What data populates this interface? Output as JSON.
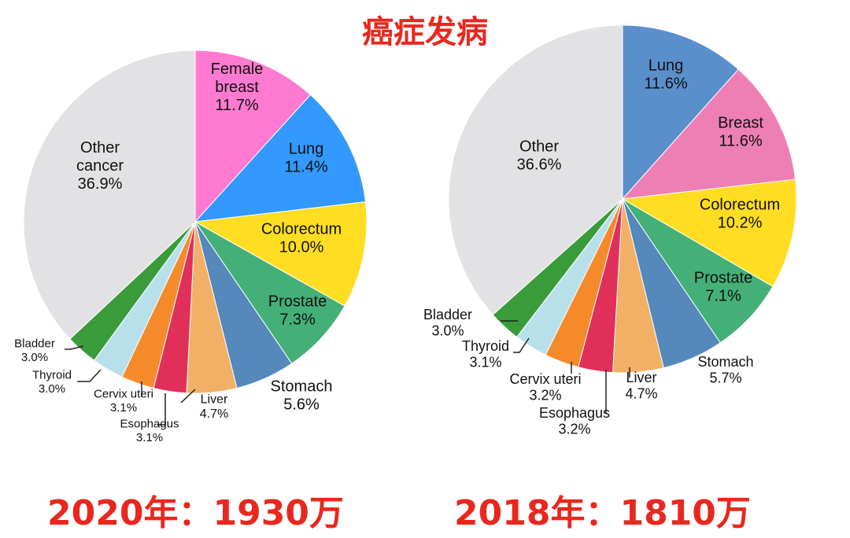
{
  "title": "癌症发病",
  "captions": {
    "left": "2020年：1930万",
    "right": "2018年：1810万"
  },
  "chart_data": [
    {
      "type": "pie",
      "caption": "2020年：1930万",
      "slices": [
        {
          "label": [
            "Female",
            "breast"
          ],
          "value": 11.7,
          "pct": "11.7%",
          "color": "#ff7ad0"
        },
        {
          "label": [
            "Lung"
          ],
          "value": 11.4,
          "pct": "11.4%",
          "color": "#3399ff"
        },
        {
          "label": [
            "Colorectum"
          ],
          "value": 10.0,
          "pct": "10.0%",
          "color": "#ffdd22"
        },
        {
          "label": [
            "Prostate"
          ],
          "value": 7.3,
          "pct": "7.3%",
          "color": "#44b077"
        },
        {
          "label": [
            "Stomach"
          ],
          "value": 5.6,
          "pct": "5.6%",
          "color": "#5588bb"
        },
        {
          "label": [
            "Liver"
          ],
          "value": 4.7,
          "pct": "4.7%",
          "color": "#f2b066"
        },
        {
          "label": [
            "Esophagus"
          ],
          "value": 3.1,
          "pct": "3.1%",
          "color": "#e0305a"
        },
        {
          "label": [
            "Cervix uteri"
          ],
          "value": 3.1,
          "pct": "3.1%",
          "color": "#f58a2a"
        },
        {
          "label": [
            "Thyroid"
          ],
          "value": 3.0,
          "pct": "3.0%",
          "color": "#b8e0ea"
        },
        {
          "label": [
            "Bladder"
          ],
          "value": 3.0,
          "pct": "3.0%",
          "color": "#3a9b3a"
        },
        {
          "label": [
            "Other",
            "cancer"
          ],
          "value": 36.9,
          "pct": "36.9%",
          "color": "#e2e2e4"
        }
      ]
    },
    {
      "type": "pie",
      "caption": "2018年：1810万",
      "slices": [
        {
          "label": [
            "Lung"
          ],
          "value": 11.6,
          "pct": "11.6%",
          "color": "#5b8fcc"
        },
        {
          "label": [
            "Breast"
          ],
          "value": 11.6,
          "pct": "11.6%",
          "color": "#ee7fb4"
        },
        {
          "label": [
            "Colorectum"
          ],
          "value": 10.2,
          "pct": "10.2%",
          "color": "#ffdd22"
        },
        {
          "label": [
            "Prostate"
          ],
          "value": 7.1,
          "pct": "7.1%",
          "color": "#44b077"
        },
        {
          "label": [
            "Stomach"
          ],
          "value": 5.7,
          "pct": "5.7%",
          "color": "#5588bb"
        },
        {
          "label": [
            "Liver"
          ],
          "value": 4.7,
          "pct": "4.7%",
          "color": "#f2b066"
        },
        {
          "label": [
            "Esophagus"
          ],
          "value": 3.2,
          "pct": "3.2%",
          "color": "#e0305a"
        },
        {
          "label": [
            "Cervix uteri"
          ],
          "value": 3.2,
          "pct": "3.2%",
          "color": "#f58a2a"
        },
        {
          "label": [
            "Thyroid"
          ],
          "value": 3.1,
          "pct": "3.1%",
          "color": "#b8e0ea"
        },
        {
          "label": [
            "Bladder"
          ],
          "value": 3.0,
          "pct": "3.0%",
          "color": "#3a9b3a"
        },
        {
          "label": [
            "Other"
          ],
          "value": 36.6,
          "pct": "36.6%",
          "color": "#e2e2e4"
        }
      ]
    }
  ]
}
